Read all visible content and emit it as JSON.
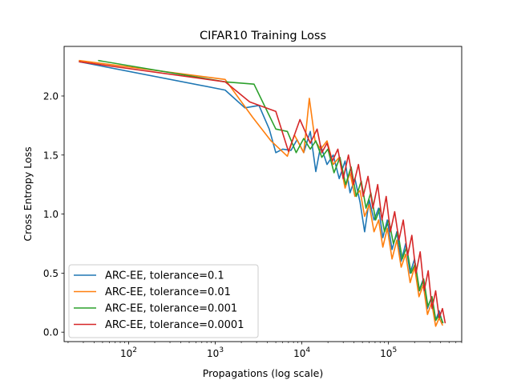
{
  "chart_data": {
    "type": "line",
    "title": "CIFAR10 Training Loss",
    "xlabel": "Propagations (log scale)",
    "ylabel": "Cross Entropy Loss",
    "xscale": "log",
    "xlim": [
      18,
      700000
    ],
    "ylim": [
      -0.08,
      2.42
    ],
    "xticks": [
      {
        "value": 100,
        "base": "10",
        "exp": "2"
      },
      {
        "value": 1000,
        "base": "10",
        "exp": "3"
      },
      {
        "value": 10000,
        "base": "10",
        "exp": "4"
      },
      {
        "value": 100000,
        "base": "10",
        "exp": "5"
      }
    ],
    "yticks": [
      0.0,
      0.5,
      1.0,
      1.5,
      2.0
    ],
    "ytick_labels": [
      "0.0",
      "0.5",
      "1.0",
      "1.5",
      "2.0"
    ],
    "grid": false,
    "legend_position": "lower-left",
    "series": [
      {
        "name": "ARC-EE, tolerance=0.1",
        "color": "#1f77b4",
        "points": [
          [
            27,
            2.29
          ],
          [
            1300,
            2.05
          ],
          [
            2200,
            1.9
          ],
          [
            3200,
            1.92
          ],
          [
            4200,
            1.72
          ],
          [
            5000,
            1.52
          ],
          [
            6000,
            1.55
          ],
          [
            7500,
            1.54
          ],
          [
            8800,
            1.63
          ],
          [
            10500,
            1.52
          ],
          [
            12500,
            1.7
          ],
          [
            14500,
            1.36
          ],
          [
            16500,
            1.58
          ],
          [
            19500,
            1.42
          ],
          [
            23000,
            1.5
          ],
          [
            27000,
            1.3
          ],
          [
            31500,
            1.45
          ],
          [
            36000,
            1.18
          ],
          [
            41000,
            1.3
          ],
          [
            47000,
            1.1
          ],
          [
            53000,
            0.85
          ],
          [
            60000,
            1.12
          ],
          [
            68000,
            0.95
          ],
          [
            77000,
            1.05
          ],
          [
            86000,
            0.8
          ],
          [
            97000,
            0.95
          ],
          [
            110000,
            0.7
          ],
          [
            125000,
            0.85
          ],
          [
            140000,
            0.6
          ],
          [
            158000,
            0.75
          ],
          [
            178000,
            0.5
          ],
          [
            200000,
            0.62
          ],
          [
            225000,
            0.35
          ],
          [
            252000,
            0.45
          ],
          [
            282000,
            0.2
          ],
          [
            315000,
            0.3
          ],
          [
            350000,
            0.1
          ],
          [
            385000,
            0.18
          ],
          [
            420000,
            0.08
          ]
        ]
      },
      {
        "name": "ARC-EE, tolerance=0.01",
        "color": "#ff7f0e",
        "points": [
          [
            27,
            2.3
          ],
          [
            1300,
            2.14
          ],
          [
            2700,
            1.82
          ],
          [
            4400,
            1.62
          ],
          [
            6800,
            1.49
          ],
          [
            8200,
            1.67
          ],
          [
            10500,
            1.52
          ],
          [
            12200,
            1.98
          ],
          [
            14200,
            1.62
          ],
          [
            16500,
            1.55
          ],
          [
            19500,
            1.62
          ],
          [
            23000,
            1.42
          ],
          [
            27000,
            1.48
          ],
          [
            31500,
            1.22
          ],
          [
            36000,
            1.35
          ],
          [
            41000,
            1.15
          ],
          [
            47000,
            1.2
          ],
          [
            53000,
            0.98
          ],
          [
            60000,
            1.08
          ],
          [
            68000,
            0.85
          ],
          [
            77000,
            0.95
          ],
          [
            86000,
            0.72
          ],
          [
            97000,
            0.88
          ],
          [
            110000,
            0.62
          ],
          [
            125000,
            0.78
          ],
          [
            140000,
            0.55
          ],
          [
            158000,
            0.66
          ],
          [
            178000,
            0.42
          ],
          [
            200000,
            0.55
          ],
          [
            225000,
            0.3
          ],
          [
            252000,
            0.4
          ],
          [
            282000,
            0.15
          ],
          [
            315000,
            0.25
          ],
          [
            350000,
            0.05
          ],
          [
            385000,
            0.12
          ],
          [
            420000,
            0.06
          ]
        ]
      },
      {
        "name": "ARC-EE, tolerance=0.001",
        "color": "#2ca02c",
        "points": [
          [
            45,
            2.3
          ],
          [
            1300,
            2.12
          ],
          [
            2800,
            2.1
          ],
          [
            5000,
            1.72
          ],
          [
            6800,
            1.7
          ],
          [
            8600,
            1.52
          ],
          [
            10500,
            1.64
          ],
          [
            12500,
            1.55
          ],
          [
            14500,
            1.62
          ],
          [
            17000,
            1.48
          ],
          [
            20000,
            1.55
          ],
          [
            23500,
            1.35
          ],
          [
            27500,
            1.48
          ],
          [
            32000,
            1.25
          ],
          [
            37000,
            1.4
          ],
          [
            42500,
            1.15
          ],
          [
            48500,
            1.28
          ],
          [
            55000,
            1.05
          ],
          [
            62500,
            1.18
          ],
          [
            71000,
            0.95
          ],
          [
            80000,
            1.05
          ],
          [
            90000,
            0.85
          ],
          [
            101000,
            0.95
          ],
          [
            114000,
            0.75
          ],
          [
            128000,
            0.85
          ],
          [
            144000,
            0.62
          ],
          [
            162000,
            0.72
          ],
          [
            182000,
            0.5
          ],
          [
            204000,
            0.58
          ],
          [
            228000,
            0.35
          ],
          [
            255000,
            0.45
          ],
          [
            285000,
            0.22
          ],
          [
            318000,
            0.3
          ],
          [
            352000,
            0.1
          ],
          [
            388000,
            0.15
          ],
          [
            425000,
            0.08
          ]
        ]
      },
      {
        "name": "ARC-EE, tolerance=0.0001",
        "color": "#d62728",
        "points": [
          [
            27,
            2.29
          ],
          [
            1300,
            2.12
          ],
          [
            2500,
            1.95
          ],
          [
            5000,
            1.87
          ],
          [
            7000,
            1.53
          ],
          [
            9500,
            1.8
          ],
          [
            12500,
            1.6
          ],
          [
            15000,
            1.72
          ],
          [
            17000,
            1.52
          ],
          [
            19500,
            1.6
          ],
          [
            22500,
            1.45
          ],
          [
            26000,
            1.55
          ],
          [
            30000,
            1.3
          ],
          [
            34500,
            1.5
          ],
          [
            39500,
            1.25
          ],
          [
            45000,
            1.42
          ],
          [
            51000,
            1.15
          ],
          [
            58000,
            1.32
          ],
          [
            66000,
            1.05
          ],
          [
            75000,
            1.25
          ],
          [
            84000,
            0.95
          ],
          [
            94000,
            1.15
          ],
          [
            105000,
            0.85
          ],
          [
            118000,
            1.02
          ],
          [
            132000,
            0.78
          ],
          [
            148000,
            0.95
          ],
          [
            166000,
            0.65
          ],
          [
            186000,
            0.82
          ],
          [
            208000,
            0.5
          ],
          [
            232000,
            0.68
          ],
          [
            258000,
            0.35
          ],
          [
            287000,
            0.52
          ],
          [
            318000,
            0.2
          ],
          [
            350000,
            0.35
          ],
          [
            385000,
            0.12
          ],
          [
            420000,
            0.2
          ],
          [
            450000,
            0.08
          ]
        ]
      }
    ]
  }
}
